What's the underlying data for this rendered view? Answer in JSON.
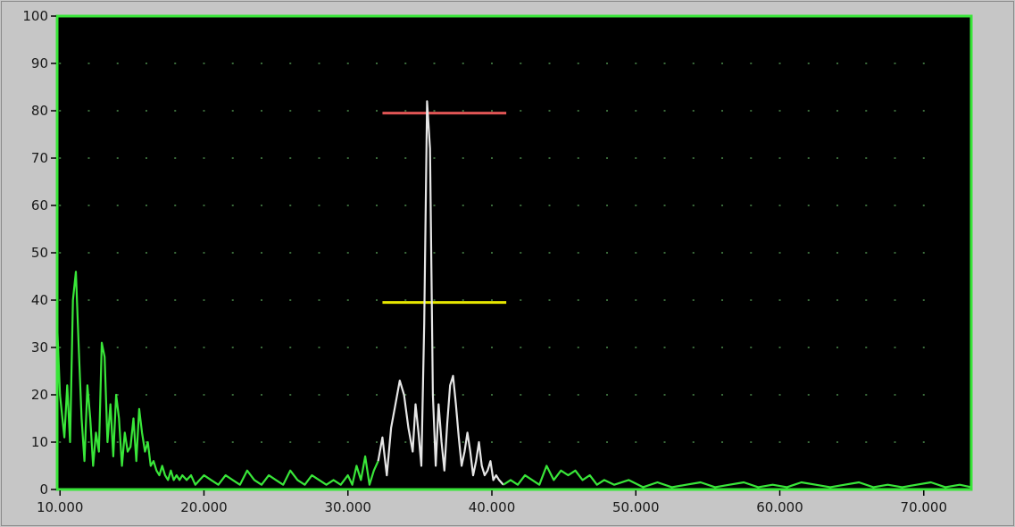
{
  "chart_data": {
    "type": "line",
    "title": "",
    "xlabel": "",
    "ylabel": "",
    "xlim": [
      9800,
      73300
    ],
    "ylim": [
      0,
      100
    ],
    "x_ticks": [
      10000,
      20000,
      30000,
      40000,
      50000,
      60000,
      70000
    ],
    "x_tick_labels": [
      "10.000",
      "20.000",
      "30.000",
      "40.000",
      "50.000",
      "60.000",
      "70.000"
    ],
    "y_ticks": [
      0,
      10,
      20,
      30,
      40,
      50,
      60,
      70,
      80,
      90,
      100
    ],
    "y_tick_labels": [
      "0",
      "10",
      "20",
      "30",
      "40",
      "50",
      "60",
      "70",
      "80",
      "90",
      "100"
    ],
    "grid": "dotted",
    "colors": {
      "background": "#000000",
      "frame": "#39e639",
      "spectrum": "#39e639",
      "highlight": "#e6e6e6",
      "upper_level": "#e05555",
      "lower_level": "#e6e600",
      "grid_dots": "#3a6a3a"
    },
    "series": [
      {
        "color": "green",
        "x": [
          9800,
          10000,
          10300,
          10500,
          10700,
          10900,
          11100,
          11300,
          11500,
          11700,
          11900,
          12100,
          12300,
          12500,
          12700,
          12900,
          13100,
          13300,
          13500,
          13700,
          13900,
          14100,
          14300,
          14500,
          14700,
          14900,
          15100,
          15300,
          15500,
          15700,
          15900,
          16100,
          16300,
          16500,
          16700,
          16900,
          17100,
          17300,
          17500,
          17700,
          17900,
          18100,
          18300,
          18500,
          18800,
          19100,
          19400,
          19700,
          20000,
          20500,
          21000,
          21500,
          22000,
          22500,
          23000,
          23500,
          24000,
          24500,
          25000,
          25500,
          26000,
          26500,
          27000,
          27500,
          28000,
          28500,
          29000,
          29500,
          30000,
          30300,
          30600,
          30900,
          31200,
          31500,
          31800,
          32100
        ],
        "y": [
          35,
          20,
          11,
          22,
          10,
          40,
          46,
          30,
          15,
          6,
          22,
          15,
          5,
          12,
          8,
          31,
          28,
          10,
          18,
          7,
          20,
          15,
          5,
          12,
          8,
          9,
          15,
          6,
          17,
          12,
          8,
          10,
          5,
          6,
          4,
          3,
          5,
          3,
          2,
          4,
          2,
          3,
          2,
          3,
          2,
          3,
          1,
          2,
          3,
          2,
          1,
          3,
          2,
          1,
          4,
          2,
          1,
          3,
          2,
          1,
          4,
          2,
          1,
          3,
          2,
          1,
          2,
          1,
          3,
          1,
          5,
          2,
          7,
          1,
          4,
          6
        ]
      },
      {
        "color": "white",
        "x": [
          32100,
          32400,
          32700,
          33000,
          33300,
          33600,
          33900,
          34200,
          34500,
          34700,
          34900,
          35100,
          35300,
          35500,
          35700,
          35900,
          36100,
          36300,
          36500,
          36700,
          36900,
          37100,
          37300,
          37500,
          37700,
          37900,
          38100,
          38300,
          38500,
          38700,
          38900,
          39100,
          39300,
          39500,
          39700,
          39900,
          40100,
          40300,
          40500,
          40800
        ],
        "y": [
          6,
          11,
          3,
          13,
          18,
          23,
          20,
          13,
          8,
          18,
          12,
          5,
          35,
          82,
          72,
          20,
          5,
          18,
          10,
          4,
          14,
          22,
          24,
          18,
          11,
          5,
          8,
          12,
          8,
          3,
          6,
          10,
          5,
          3,
          4,
          6,
          2,
          3,
          2,
          1
        ]
      },
      {
        "color": "green",
        "x": [
          40800,
          41300,
          41800,
          42300,
          42800,
          43300,
          43800,
          44300,
          44800,
          45300,
          45800,
          46300,
          46800,
          47300,
          47800,
          48500,
          49500,
          50500,
          51500,
          52500,
          53500,
          54500,
          55500,
          56500,
          57500,
          58500,
          59500,
          60500,
          61500,
          62500,
          63500,
          64500,
          65500,
          66500,
          67500,
          68500,
          69500,
          70500,
          71500,
          72500,
          73300
        ],
        "y": [
          1,
          2,
          1,
          3,
          2,
          1,
          5,
          2,
          4,
          3,
          4,
          2,
          3,
          1,
          2,
          1,
          2,
          0.5,
          1.5,
          0.5,
          1,
          1.5,
          0.5,
          1,
          1.5,
          0.5,
          1,
          0.5,
          1.5,
          1,
          0.5,
          1,
          1.5,
          0.5,
          1,
          0.5,
          1,
          1.5,
          0.5,
          1,
          0.5
        ]
      }
    ],
    "horizontal_lines": [
      {
        "color": "red",
        "y": 79.5,
        "x_start": 32400,
        "x_end": 41000
      },
      {
        "color": "yellow",
        "y": 39.5,
        "x_start": 32400,
        "x_end": 41000
      }
    ]
  }
}
